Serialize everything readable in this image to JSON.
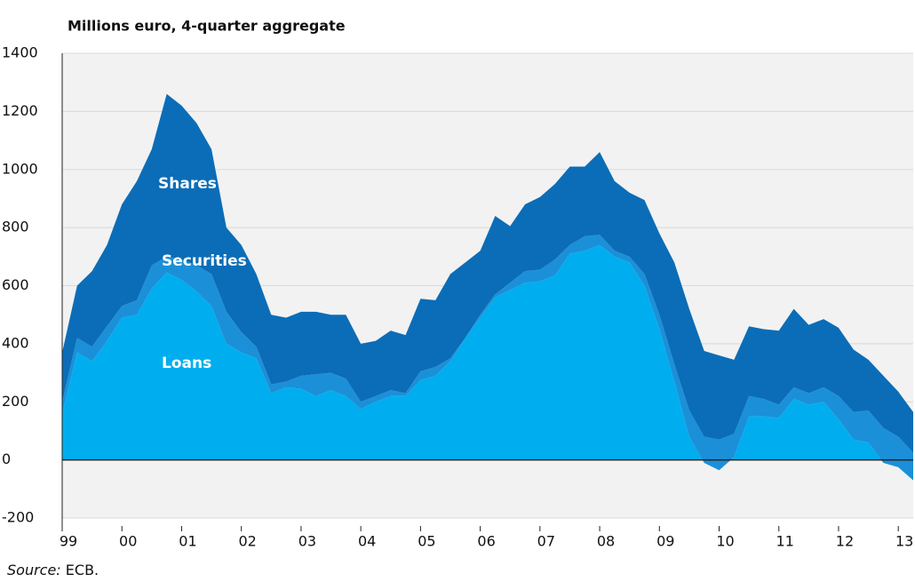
{
  "chart_data": {
    "type": "area",
    "stacked": true,
    "title": "Millions euro, 4-quarter aggregate",
    "source_label": "Source:",
    "source": "ECB.",
    "annotations": [
      "Shares",
      "Securities",
      "Loans"
    ],
    "categories": [
      "99",
      null,
      null,
      null,
      "00",
      null,
      null,
      null,
      "01",
      null,
      null,
      null,
      "02",
      null,
      null,
      null,
      "03",
      null,
      null,
      null,
      "04",
      null,
      null,
      null,
      "05",
      null,
      null,
      null,
      "06",
      null,
      null,
      null,
      "07",
      null,
      null,
      null,
      "08",
      null,
      null,
      null,
      "09",
      null,
      null,
      null,
      "10",
      null,
      null,
      null,
      "11",
      null,
      null,
      null,
      "12",
      null,
      null,
      null,
      "13",
      null
    ],
    "series": [
      {
        "name": "Loans",
        "color": "#00aeef",
        "values": [
          160,
          370,
          340,
          410,
          490,
          500,
          590,
          645,
          620,
          580,
          530,
          400,
          370,
          350,
          230,
          250,
          245,
          220,
          240,
          220,
          175,
          200,
          220,
          220,
          275,
          290,
          340,
          420,
          490,
          560,
          585,
          610,
          615,
          635,
          710,
          720,
          740,
          700,
          680,
          600,
          450,
          270,
          80,
          -10,
          -35,
          10,
          150,
          150,
          145,
          210,
          190,
          200,
          140,
          70,
          60,
          -10,
          -25,
          -70
        ]
      },
      {
        "name": "Securities",
        "color": "#1b90d8",
        "values": [
          40,
          50,
          50,
          50,
          40,
          50,
          80,
          55,
          70,
          90,
          110,
          110,
          70,
          40,
          30,
          20,
          45,
          75,
          60,
          60,
          25,
          20,
          20,
          10,
          30,
          30,
          10,
          0,
          10,
          10,
          25,
          40,
          40,
          55,
          30,
          50,
          35,
          20,
          20,
          40,
          50,
          60,
          90,
          90,
          105,
          80,
          70,
          60,
          45,
          40,
          40,
          50,
          80,
          95,
          110,
          120,
          105,
          95
        ]
      },
      {
        "name": "Shares",
        "color": "#0b6db7",
        "values": [
          170,
          180,
          260,
          280,
          350,
          410,
          400,
          560,
          530,
          490,
          430,
          290,
          300,
          250,
          240,
          220,
          220,
          215,
          200,
          220,
          200,
          190,
          205,
          200,
          250,
          230,
          290,
          260,
          220,
          270,
          195,
          230,
          250,
          260,
          270,
          240,
          285,
          240,
          220,
          255,
          280,
          350,
          350,
          295,
          290,
          255,
          240,
          240,
          255,
          270,
          235,
          235,
          235,
          215,
          175,
          180,
          155,
          140
        ]
      }
    ],
    "ylim": [
      -200,
      1400
    ],
    "yticks": [
      -200,
      0,
      200,
      400,
      600,
      800,
      1000,
      1200,
      1400
    ],
    "grid": true
  }
}
